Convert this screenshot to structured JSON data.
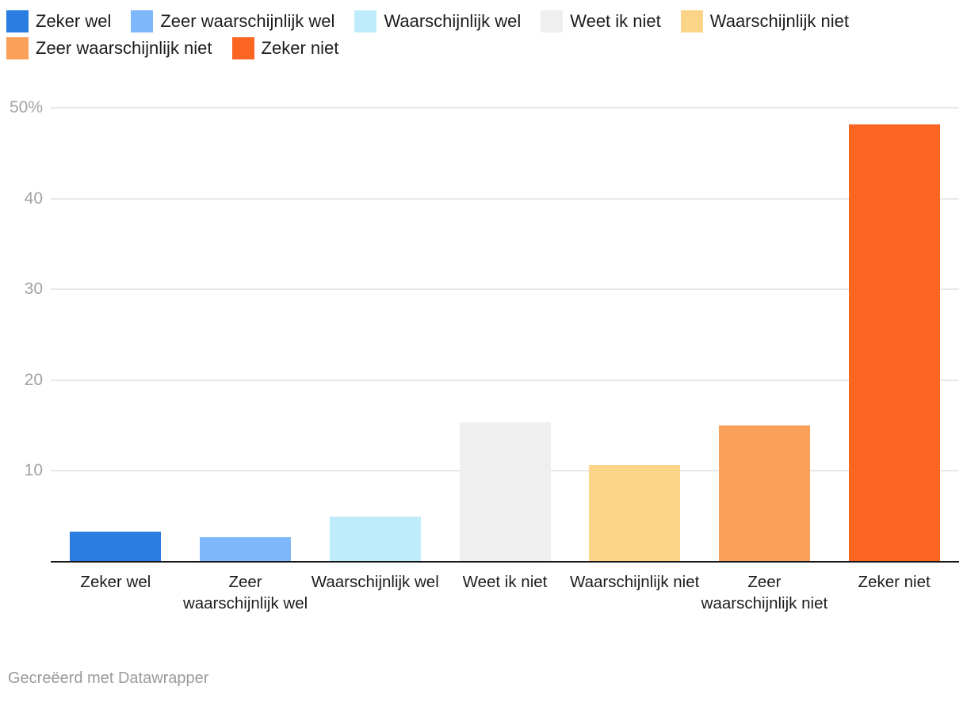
{
  "chart_data": {
    "type": "bar",
    "title": "",
    "xlabel": "",
    "ylabel": "",
    "categories": [
      "Zeker wel",
      "Zeer waarschijnlijk wel",
      "Waarschijnlijk wel",
      "Weet ik niet",
      "Waarschijnlijk niet",
      "Zeer waarschijnlijk niet",
      "Zeker niet"
    ],
    "values": [
      3.3,
      2.7,
      4.9,
      15.3,
      10.6,
      15.0,
      48.2
    ],
    "unit": "%",
    "colors": [
      "#2b7de1",
      "#7fb8fa",
      "#bfecfb",
      "#efefef",
      "#fcd488",
      "#fba059",
      "#fa6621"
    ],
    "legend": [
      {
        "label": "Zeker wel",
        "color": "#2b7de1"
      },
      {
        "label": "Zeer waarschijnlijk wel",
        "color": "#7fb8fa"
      },
      {
        "label": "Waarschijnlijk wel",
        "color": "#bfecfb"
      },
      {
        "label": "Weet ik niet",
        "color": "#efefef"
      },
      {
        "label": "Waarschijnlijk niet",
        "color": "#fcd488"
      },
      {
        "label": "Zeer waarschijnlijk niet",
        "color": "#fba059"
      },
      {
        "label": "Zeker niet",
        "color": "#fa6621"
      }
    ],
    "legend_position": "top",
    "grid": "horizontal",
    "ylim": [
      0,
      50
    ],
    "y_ticks": [
      {
        "value": 10,
        "label": "10"
      },
      {
        "value": 20,
        "label": "20"
      },
      {
        "value": 30,
        "label": "30"
      },
      {
        "value": 40,
        "label": "40"
      },
      {
        "value": 50,
        "label": "50%"
      }
    ]
  },
  "colors": {
    "background": "#ffffff",
    "axis_line": "#161616",
    "gridline": "#e8e8e8",
    "tick_label": "#a3a3a3",
    "category_label": "#1d1d1d",
    "legend_label": "#1d1d1d",
    "footer_text": "#9a9a9a"
  },
  "footer": {
    "credit": "Gecreëerd met Datawrapper"
  }
}
